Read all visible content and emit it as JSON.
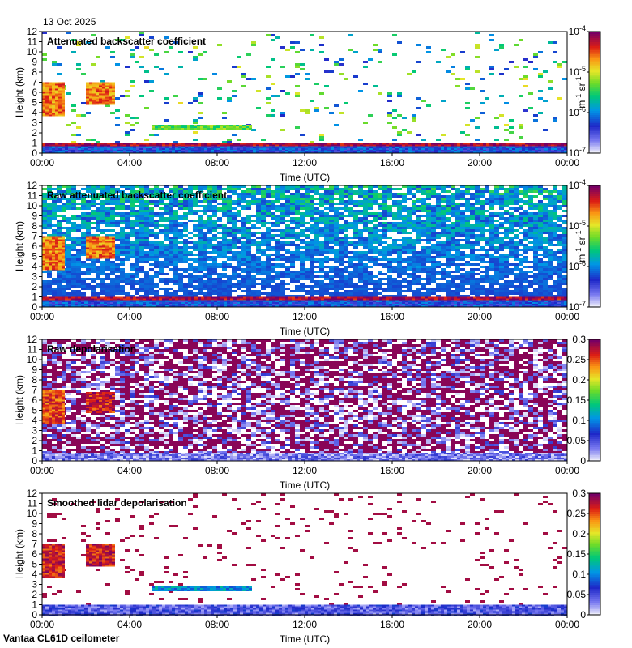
{
  "date": "13 Oct 2025",
  "footer": "Vantaa CL61D ceilometer",
  "chart_data": [
    {
      "type": "heatmap",
      "title": "Attenuated backscatter coefficient",
      "xlabel": "Time (UTC)",
      "ylabel": "Height (km)",
      "x_ticks": [
        "00:00",
        "04:00",
        "08:00",
        "12:00",
        "16:00",
        "20:00",
        "00:00"
      ],
      "y_ticks": [
        "0",
        "1",
        "2",
        "3",
        "4",
        "5",
        "6",
        "7",
        "8",
        "9",
        "10",
        "11",
        "12"
      ],
      "ylim": [
        0,
        12
      ],
      "colorbar": {
        "scale": "log",
        "range": [
          1e-07,
          0.0001
        ],
        "unit": "m-1 sr-1",
        "ticks": [
          "10-7",
          "10-6",
          "10-5",
          "10-4"
        ],
        "unit_parts": [
          "m",
          "-1",
          " sr",
          "-1"
        ]
      },
      "noise": "sparse",
      "features": [
        {
          "desc": "boundary layer",
          "x": [
            0,
            24
          ],
          "y": [
            0,
            0.8
          ],
          "level": 0.25
        },
        {
          "desc": "cloud base",
          "x": [
            0,
            24
          ],
          "y": [
            0.75,
            1.0
          ],
          "level": 0.95
        },
        {
          "desc": "early cloud",
          "x": [
            0,
            0.9
          ],
          "y": [
            3.7,
            7.0
          ],
          "level": 0.8
        },
        {
          "desc": "early cloud",
          "x": [
            2.0,
            3.2
          ],
          "y": [
            4.8,
            7.0
          ],
          "level": 0.8
        },
        {
          "desc": "mid-level layer",
          "x": [
            5.0,
            9.5
          ],
          "y": [
            2.4,
            2.8
          ],
          "level": 0.55
        }
      ]
    },
    {
      "type": "heatmap",
      "title": "Raw attenuated backscatter coefficient",
      "xlabel": "Time (UTC)",
      "ylabel": "Height (km)",
      "x_ticks": [
        "00:00",
        "04:00",
        "08:00",
        "12:00",
        "16:00",
        "20:00",
        "00:00"
      ],
      "y_ticks": [
        "0",
        "1",
        "2",
        "3",
        "4",
        "5",
        "6",
        "7",
        "8",
        "9",
        "10",
        "11",
        "12"
      ],
      "ylim": [
        0,
        12
      ],
      "colorbar": {
        "scale": "log",
        "range": [
          1e-07,
          0.0001
        ],
        "unit": "m-1 sr-1",
        "ticks": [
          "10-7",
          "10-6",
          "10-5",
          "10-4"
        ],
        "unit_parts": [
          "m",
          "-1",
          " sr",
          "-1"
        ]
      },
      "noise": "dense",
      "features": [
        {
          "desc": "boundary layer",
          "x": [
            0,
            24
          ],
          "y": [
            0,
            0.8
          ],
          "level": 0.25
        },
        {
          "desc": "cloud base",
          "x": [
            0,
            24
          ],
          "y": [
            0.75,
            1.0
          ],
          "level": 0.95
        },
        {
          "desc": "early cloud",
          "x": [
            0,
            0.9
          ],
          "y": [
            3.7,
            7.0
          ],
          "level": 0.8
        },
        {
          "desc": "early cloud",
          "x": [
            2.0,
            3.2
          ],
          "y": [
            4.8,
            7.0
          ],
          "level": 0.8
        }
      ]
    },
    {
      "type": "heatmap",
      "title": "Raw depolarisation",
      "xlabel": "Time (UTC)",
      "ylabel": "Height (km)",
      "x_ticks": [
        "00:00",
        "04:00",
        "08:00",
        "12:00",
        "16:00",
        "20:00",
        "00:00"
      ],
      "y_ticks": [
        "0",
        "1",
        "2",
        "3",
        "4",
        "5",
        "6",
        "7",
        "8",
        "9",
        "10",
        "11",
        "12"
      ],
      "ylim": [
        0,
        12
      ],
      "colorbar": {
        "scale": "linear",
        "range": [
          0,
          0.3
        ],
        "unit": "",
        "ticks": [
          "0",
          "0.05",
          "0.1",
          "0.15",
          "0.2",
          "0.25",
          "0.3"
        ]
      },
      "noise": "depol",
      "features": [
        {
          "desc": "boundary layer",
          "x": [
            0,
            24
          ],
          "y": [
            0,
            0.8
          ],
          "level": 0.1
        },
        {
          "desc": "early cloud",
          "x": [
            0,
            0.9
          ],
          "y": [
            3.7,
            7.0
          ],
          "level": 0.85
        },
        {
          "desc": "early cloud",
          "x": [
            2.0,
            3.2
          ],
          "y": [
            4.8,
            6.8
          ],
          "level": 0.9
        }
      ]
    },
    {
      "type": "heatmap",
      "title": "Smoothed lidar depolarisation",
      "xlabel": "Time (UTC)",
      "ylabel": "Height (km)",
      "x_ticks": [
        "00:00",
        "04:00",
        "08:00",
        "12:00",
        "16:00",
        "20:00",
        "00:00"
      ],
      "y_ticks": [
        "0",
        "1",
        "2",
        "3",
        "4",
        "5",
        "6",
        "7",
        "8",
        "9",
        "10",
        "11",
        "12"
      ],
      "ylim": [
        0,
        12
      ],
      "colorbar": {
        "scale": "linear",
        "range": [
          0,
          0.3
        ],
        "unit": "",
        "ticks": [
          "0",
          "0.05",
          "0.1",
          "0.15",
          "0.2",
          "0.25",
          "0.3"
        ]
      },
      "noise": "sparse-depol",
      "features": [
        {
          "desc": "boundary layer",
          "x": [
            0,
            24
          ],
          "y": [
            0,
            1.0
          ],
          "level": 0.15
        },
        {
          "desc": "early cloud",
          "x": [
            0,
            0.9
          ],
          "y": [
            3.7,
            7.0
          ],
          "level": 0.9
        },
        {
          "desc": "early cloud",
          "x": [
            2.0,
            3.2
          ],
          "y": [
            4.8,
            7.0
          ],
          "level": 0.9
        },
        {
          "desc": "mid-level layer",
          "x": [
            5.0,
            9.5
          ],
          "y": [
            2.4,
            2.8
          ],
          "level": 0.35
        }
      ]
    }
  ]
}
